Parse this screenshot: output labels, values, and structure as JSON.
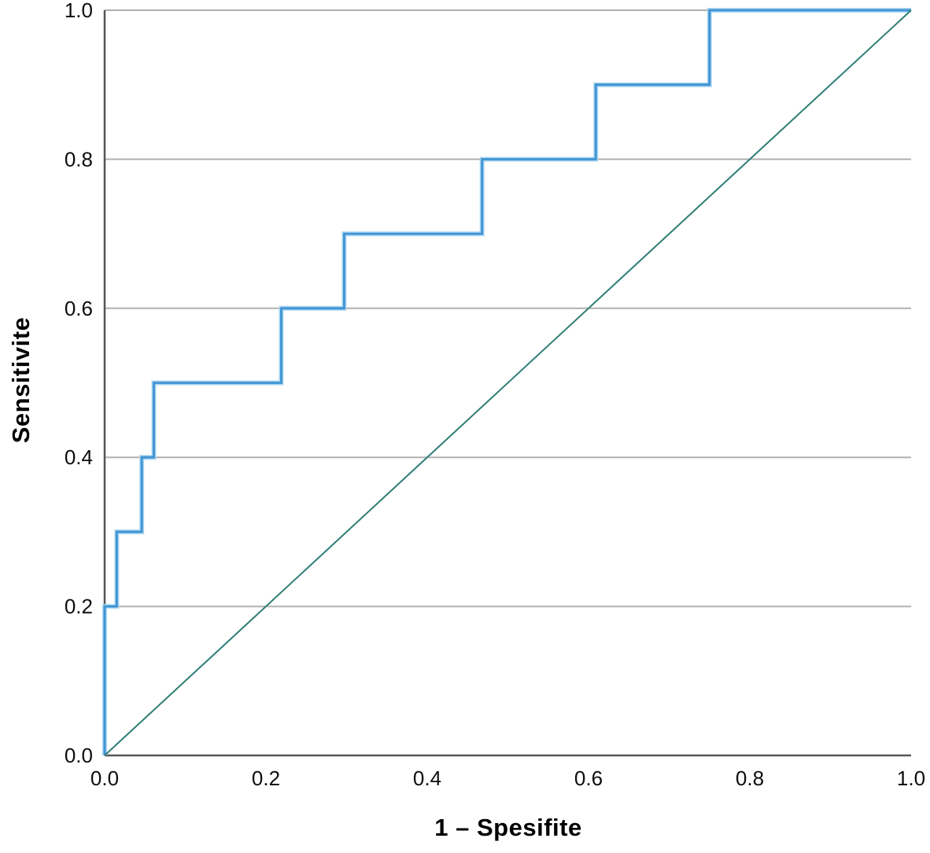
{
  "figure": {
    "background_color": "#ffffff",
    "grid_color": "#b0b0b0",
    "axis_color": "#555555",
    "text_color": "#0d0d0d"
  },
  "chart_data": {
    "type": "line",
    "subtype": "roc-curve",
    "title": "",
    "xlabel": "1 – Spesifite",
    "ylabel": "Sensitivite",
    "xlim": [
      0.0,
      1.0
    ],
    "ylim": [
      0.0,
      1.0
    ],
    "x_ticks": [
      "0.0",
      "0.2",
      "0.4",
      "0.6",
      "0.8",
      "1.0"
    ],
    "y_ticks": [
      "0.0",
      "0.2",
      "0.4",
      "0.6",
      "0.8",
      "1.0"
    ],
    "grid": "horizontal-only",
    "legend_position": "none",
    "series": [
      {
        "name": "ROC curve",
        "style": "step",
        "color": "#3e93d4",
        "halo_color": "#a9d4f0",
        "points": [
          [
            0.0,
            0.0
          ],
          [
            0.0,
            0.2
          ],
          [
            0.015,
            0.2
          ],
          [
            0.015,
            0.3
          ],
          [
            0.046,
            0.3
          ],
          [
            0.046,
            0.4
          ],
          [
            0.061,
            0.4
          ],
          [
            0.061,
            0.5
          ],
          [
            0.219,
            0.5
          ],
          [
            0.219,
            0.6
          ],
          [
            0.297,
            0.6
          ],
          [
            0.297,
            0.7
          ],
          [
            0.468,
            0.7
          ],
          [
            0.468,
            0.8
          ],
          [
            0.609,
            0.8
          ],
          [
            0.609,
            0.9
          ],
          [
            0.75,
            0.9
          ],
          [
            0.75,
            1.0
          ],
          [
            1.0,
            1.0
          ]
        ]
      },
      {
        "name": "Reference line",
        "style": "diagonal",
        "color": "#2e7e75",
        "points": [
          [
            0.0,
            0.0
          ],
          [
            1.0,
            1.0
          ]
        ]
      }
    ]
  }
}
